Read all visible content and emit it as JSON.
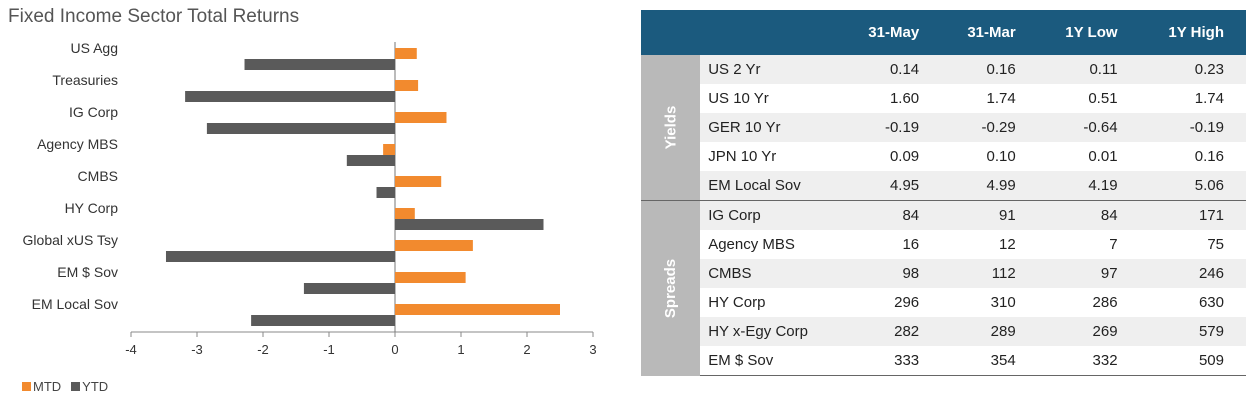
{
  "chart_data": {
    "type": "bar",
    "orientation": "horizontal",
    "title": "Fixed Income Sector Total Returns",
    "categories": [
      "US Agg",
      "Treasuries",
      "IG Corp",
      "Agency MBS",
      "CMBS",
      "HY Corp",
      "Global xUS Tsy",
      "EM $ Sov",
      "EM Local Sov"
    ],
    "series": [
      {
        "name": "MTD",
        "color": "#f28a2e",
        "values": [
          0.33,
          0.35,
          0.78,
          -0.18,
          0.7,
          0.3,
          1.18,
          1.07,
          2.5
        ]
      },
      {
        "name": "YTD",
        "color": "#5a5a5a",
        "values": [
          -2.28,
          -3.18,
          -2.85,
          -0.73,
          -0.28,
          2.25,
          -3.47,
          -1.38,
          -2.18
        ]
      }
    ],
    "xlim": [
      -4,
      3
    ],
    "ticks": [
      "-4",
      "-3",
      "-2",
      "-1",
      "0",
      "1",
      "2",
      "3"
    ],
    "grid": false,
    "legend": "bottom-left"
  },
  "table": {
    "headers": [
      "31-May",
      "31-Mar",
      "1Y Low",
      "1Y High"
    ],
    "groups": [
      {
        "name": "Yields",
        "rows": [
          {
            "label": "US 2 Yr",
            "values": [
              "0.14",
              "0.16",
              "0.11",
              "0.23"
            ]
          },
          {
            "label": "US 10 Yr",
            "values": [
              "1.60",
              "1.74",
              "0.51",
              "1.74"
            ]
          },
          {
            "label": "GER 10 Yr",
            "values": [
              "-0.19",
              "-0.29",
              "-0.64",
              "-0.19"
            ]
          },
          {
            "label": "JPN 10 Yr",
            "values": [
              "0.09",
              "0.10",
              "0.01",
              "0.16"
            ]
          },
          {
            "label": "EM Local Sov",
            "values": [
              "4.95",
              "4.99",
              "4.19",
              "5.06"
            ]
          }
        ]
      },
      {
        "name": "Spreads",
        "rows": [
          {
            "label": "IG Corp",
            "values": [
              "84",
              "91",
              "84",
              "171"
            ]
          },
          {
            "label": "Agency MBS",
            "values": [
              "16",
              "12",
              "7",
              "75"
            ]
          },
          {
            "label": "CMBS",
            "values": [
              "98",
              "112",
              "97",
              "246"
            ]
          },
          {
            "label": "HY Corp",
            "values": [
              "296",
              "310",
              "286",
              "630"
            ]
          },
          {
            "label": "HY x-Egy Corp",
            "values": [
              "282",
              "289",
              "269",
              "579"
            ]
          },
          {
            "label": "EM $ Sov",
            "values": [
              "333",
              "354",
              "332",
              "509"
            ]
          }
        ]
      }
    ]
  }
}
